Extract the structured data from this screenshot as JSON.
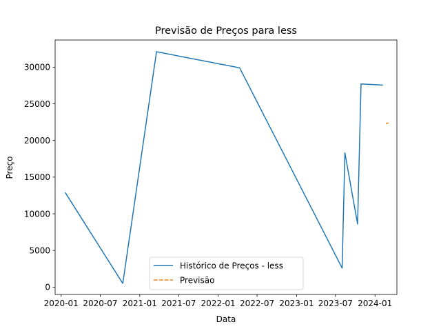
{
  "chart_data": {
    "type": "line",
    "title": "Previsão de Preços para less",
    "xlabel": "Data",
    "ylabel": "Preço",
    "x_axis_type": "date",
    "xlim": [
      "2019-12-04",
      "2024-04-12"
    ],
    "ylim": [
      -1000,
      33700
    ],
    "x_ticks": [
      {
        "date": "2020-01-01",
        "label": "2020-01"
      },
      {
        "date": "2020-07-01",
        "label": "2020-07"
      },
      {
        "date": "2021-01-01",
        "label": "2021-01"
      },
      {
        "date": "2021-07-01",
        "label": "2021-07"
      },
      {
        "date": "2022-01-01",
        "label": "2022-01"
      },
      {
        "date": "2022-07-01",
        "label": "2022-07"
      },
      {
        "date": "2023-01-01",
        "label": "2023-01"
      },
      {
        "date": "2023-07-01",
        "label": "2023-07"
      },
      {
        "date": "2024-01-01",
        "label": "2024-01"
      }
    ],
    "y_ticks": [
      0,
      5000,
      10000,
      15000,
      20000,
      25000,
      30000
    ],
    "grid": false,
    "legend_position": "bottom-center",
    "series": [
      {
        "name": "Histórico de Preços - less",
        "color": "#1f77b4",
        "style": "solid",
        "points": [
          {
            "x": "2020-01-20",
            "y": 12900
          },
          {
            "x": "2020-10-14",
            "y": 500
          },
          {
            "x": "2021-03-20",
            "y": 32100
          },
          {
            "x": "2022-04-11",
            "y": 29900
          },
          {
            "x": "2023-08-01",
            "y": 2600
          },
          {
            "x": "2023-08-14",
            "y": 18300
          },
          {
            "x": "2023-10-12",
            "y": 8600
          },
          {
            "x": "2023-10-28",
            "y": 27700
          },
          {
            "x": "2024-02-07",
            "y": 27550
          }
        ]
      },
      {
        "name": "Previsão",
        "color": "#ff7f0e",
        "style": "dashed",
        "points": [
          {
            "x": "2024-02-21",
            "y": 22300
          },
          {
            "x": "2024-03-04",
            "y": 22400
          }
        ]
      }
    ]
  }
}
